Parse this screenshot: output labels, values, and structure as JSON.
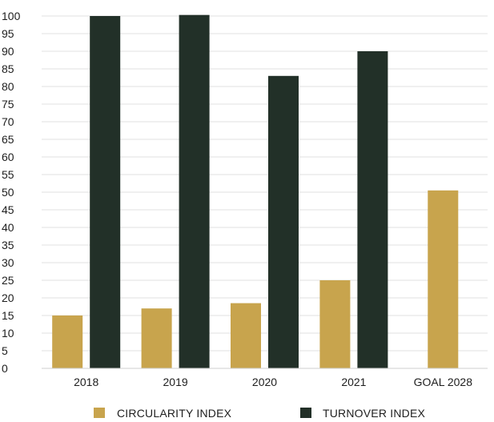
{
  "chart_data": {
    "type": "bar",
    "categories": [
      "2018",
      "2019",
      "2020",
      "2021",
      "GOAL 2028"
    ],
    "series": [
      {
        "name": "CIRCULARITY INDEX",
        "color": "#c8a44d",
        "values": [
          15,
          17,
          18.5,
          25,
          50.5
        ]
      },
      {
        "name": "TURNOVER INDEX",
        "color": "#223028",
        "values": [
          100,
          100.3,
          83,
          90,
          null
        ]
      }
    ],
    "ylim": [
      0,
      100
    ],
    "yticks": [
      0,
      5,
      10,
      15,
      20,
      25,
      30,
      35,
      40,
      45,
      50,
      55,
      60,
      65,
      70,
      75,
      80,
      85,
      90,
      95,
      100
    ],
    "grid": true,
    "legend_position": "bottom",
    "title": "",
    "xlabel": "",
    "ylabel": ""
  }
}
